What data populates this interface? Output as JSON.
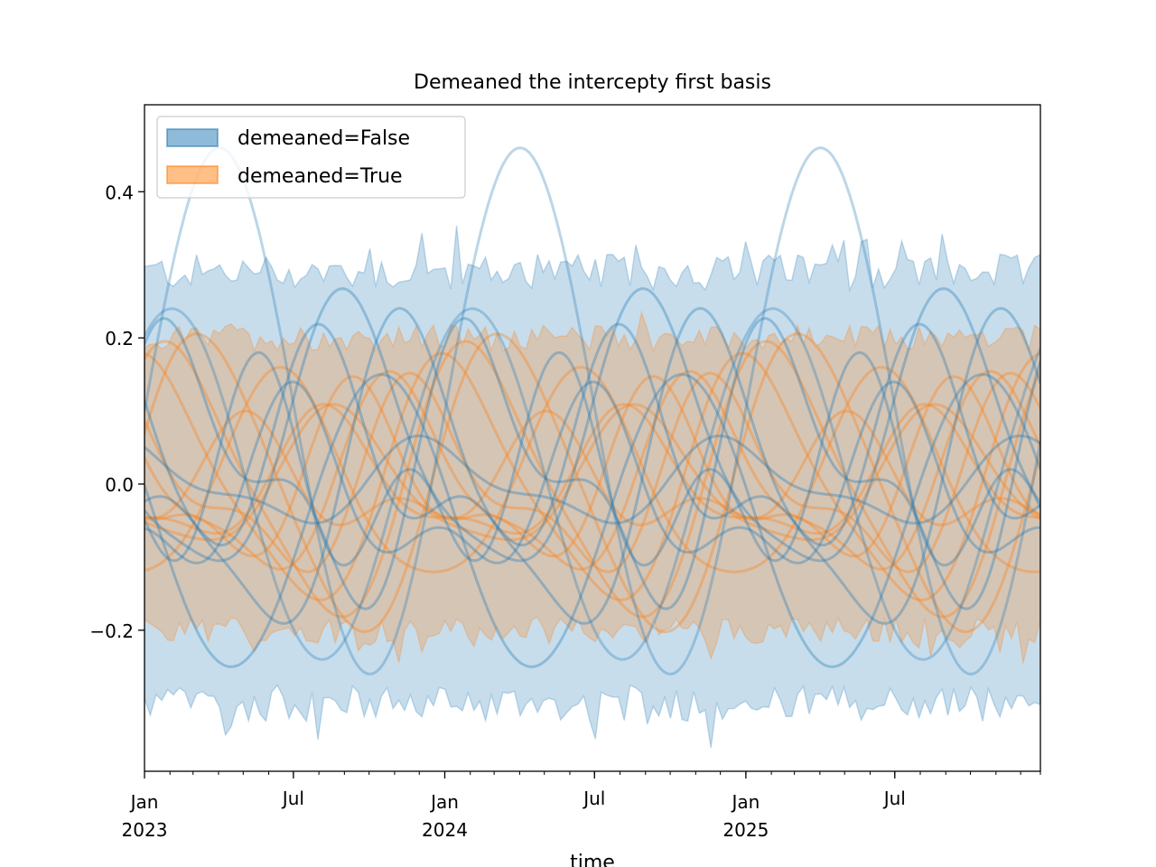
{
  "chart_data": {
    "type": "area",
    "title": "Demeaned the intercepty first basis",
    "xlabel": "time",
    "ylabel": "",
    "xlim": [
      "2023-01-01",
      "2025-12-25"
    ],
    "ylim": [
      -0.393,
      0.519
    ],
    "grid": false,
    "y_ticks": [
      {
        "value": 0.4,
        "label": "0.4"
      },
      {
        "value": 0.2,
        "label": "0.2"
      },
      {
        "value": 0.0,
        "label": "0.0"
      },
      {
        "value": -0.2,
        "label": "−0.2"
      }
    ],
    "x_major_ticks": [
      {
        "date": "2023-01-01",
        "label": "Jan",
        "sublabel": "2023"
      },
      {
        "date": "2023-07-01",
        "label": "Jul",
        "sublabel": ""
      },
      {
        "date": "2024-01-01",
        "label": "Jan",
        "sublabel": "2024"
      },
      {
        "date": "2024-07-01",
        "label": "Jul",
        "sublabel": ""
      },
      {
        "date": "2025-01-01",
        "label": "Jan",
        "sublabel": "2025"
      },
      {
        "date": "2025-07-01",
        "label": "Jul",
        "sublabel": ""
      }
    ],
    "x_minor_ticks": "monthly",
    "legend": {
      "placement": "top-left",
      "entries": [
        {
          "label": "demeaned=False",
          "color": "#1f77b4"
        },
        {
          "label": "demeaned=True",
          "color": "#ff7f0e"
        }
      ]
    },
    "series": [
      {
        "name": "demeaned=False",
        "color": "#1f77b4",
        "band": {
          "lower_mean": -0.3,
          "upper_mean": 0.29,
          "noise": 0.025
        },
        "period_years": 1,
        "sample_curve_count": 10,
        "curve_range": [
          -0.28,
          0.48
        ]
      },
      {
        "name": "demeaned=True",
        "color": "#ff7f0e",
        "band": {
          "lower_mean": -0.2,
          "upper_mean": 0.2,
          "noise": 0.018
        },
        "period_years": 1,
        "sample_curve_count": 10,
        "curve_range": [
          -0.19,
          0.22
        ]
      }
    ]
  }
}
